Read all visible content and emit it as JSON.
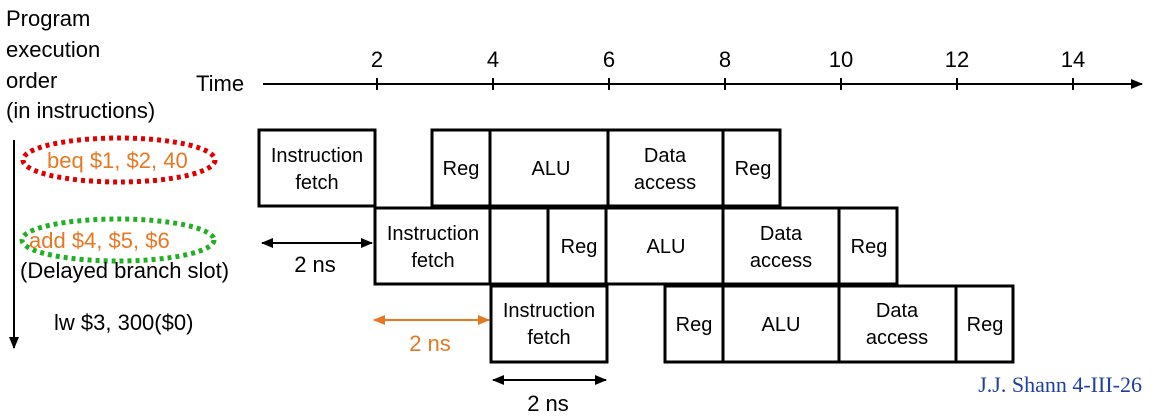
{
  "left_header": {
    "lines": [
      "Program",
      "execution",
      "order",
      "(in instructions)"
    ]
  },
  "time_label": "Time",
  "ticks": [
    "2",
    "4",
    "6",
    "8",
    "10",
    "12",
    "14"
  ],
  "instructions": [
    {
      "text": "beq $1, $2, 40",
      "color": "#E87722",
      "ellipse_color": "#E00000",
      "stages": [
        {
          "line1": "Instruction",
          "line2": "fetch"
        },
        {
          "line1": "Reg",
          "line2": ""
        },
        {
          "line1": "ALU",
          "line2": ""
        },
        {
          "line1": "Data",
          "line2": "access"
        },
        {
          "line1": "Reg",
          "line2": ""
        }
      ]
    },
    {
      "text": "add $4, $5, $6",
      "color": "#E87722",
      "ellipse_color": "#22B022",
      "note": "(Delayed branch slot)",
      "stages": [
        {
          "line1": "Instruction",
          "line2": "fetch"
        },
        {
          "line1": "Reg",
          "line2": ""
        },
        {
          "line1": "ALU",
          "line2": ""
        },
        {
          "line1": "Data",
          "line2": "access"
        },
        {
          "line1": "Reg",
          "line2": ""
        }
      ]
    },
    {
      "text": "lw $3, 300($0)",
      "color": "#000000",
      "stages": [
        {
          "line1": "Instruction",
          "line2": "fetch"
        },
        {
          "line1": "Reg",
          "line2": ""
        },
        {
          "line1": "ALU",
          "line2": ""
        },
        {
          "line1": "Data",
          "line2": "access"
        },
        {
          "line1": "Reg",
          "line2": ""
        }
      ]
    }
  ],
  "delays": [
    {
      "label": "2 ns",
      "color": "#000000"
    },
    {
      "label": "2 ns",
      "color": "#E87722"
    },
    {
      "label": "2 ns",
      "color": "#000000"
    }
  ],
  "credit": {
    "text": "J.J. Shann 4-III-26",
    "color": "#1F3FA0"
  }
}
